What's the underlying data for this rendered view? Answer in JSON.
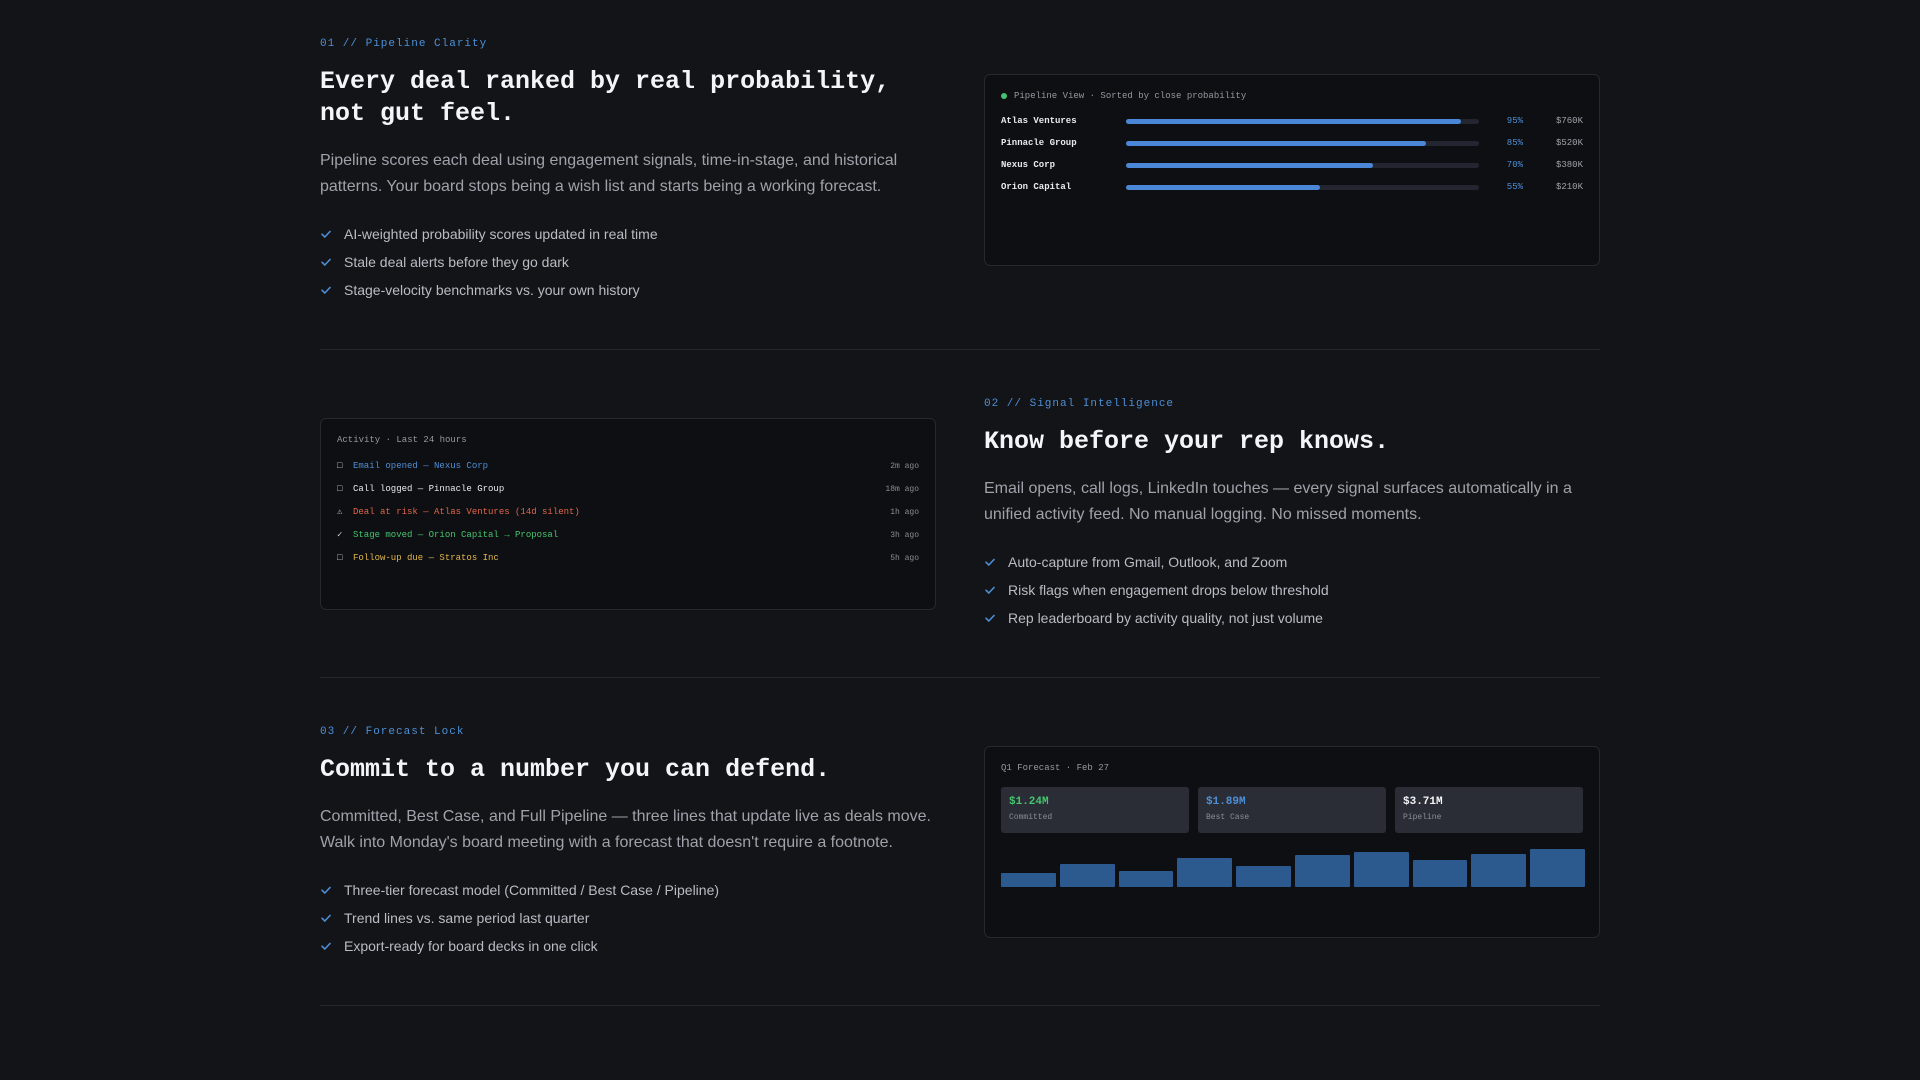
{
  "sections": [
    {
      "eyebrow": "01 // Pipeline Clarity",
      "heading": "Every deal ranked by real probability, not gut feel.",
      "description": "Pipeline scores each deal using engagement signals, time-in-stage, and historical patterns. Your board stops being a wish list and starts being a working forecast.",
      "features": [
        "AI-weighted probability scores updated in real time",
        "Stale deal alerts before they go dark",
        "Stage-velocity benchmarks vs. your own history"
      ]
    },
    {
      "eyebrow": "02 // Signal Intelligence",
      "heading": "Know before your rep knows.",
      "description": "Email opens, call logs, LinkedIn touches — every signal surfaces automatically in a unified activity feed. No manual logging. No missed moments.",
      "features": [
        "Auto-capture from Gmail, Outlook, and Zoom",
        "Risk flags when engagement drops below threshold",
        "Rep leaderboard by activity quality, not just volume"
      ]
    },
    {
      "eyebrow": "03 // Forecast Lock",
      "heading": "Commit to a number you can defend.",
      "description": "Committed, Best Case, and Full Pipeline — three lines that update live as deals move. Walk into Monday's board meeting with a forecast that doesn't require a footnote.",
      "features": [
        "Three-tier forecast model (Committed / Best Case / Pipeline)",
        "Trend lines vs. same period last quarter",
        "Export-ready for board decks in one click"
      ]
    }
  ],
  "pipeline_card": {
    "title": "Pipeline View · Sorted by close probability",
    "status_color": "#45c46f",
    "deals": [
      {
        "name": "Atlas Ventures",
        "probability": 95,
        "pct_label": "95%",
        "amount": "$760K"
      },
      {
        "name": "Pinnacle Group",
        "probability": 85,
        "pct_label": "85%",
        "amount": "$520K"
      },
      {
        "name": "Nexus Corp",
        "probability": 70,
        "pct_label": "70%",
        "amount": "$380K"
      },
      {
        "name": "Orion Capital",
        "probability": 55,
        "pct_label": "55%",
        "amount": "$210K"
      }
    ]
  },
  "activity_card": {
    "title": "Activity · Last 24 hours",
    "items": [
      {
        "icon": "envelope-icon",
        "glyph": "□",
        "text": "Email opened — Nexus Corp",
        "time": "2m ago",
        "color": "#4d8fd6"
      },
      {
        "icon": "phone-icon",
        "glyph": "□",
        "text": "Call logged — Pinnacle Group",
        "time": "18m ago",
        "color": "#e9eaee"
      },
      {
        "icon": "warning-icon",
        "glyph": "⚠",
        "text": "Deal at risk — Atlas Ventures (14d silent)",
        "time": "1h ago",
        "color": "#e0654a"
      },
      {
        "icon": "check-icon",
        "glyph": "✓",
        "text": "Stage moved — Orion Capital → Proposal",
        "time": "3h ago",
        "color": "#45c46f"
      },
      {
        "icon": "calendar-icon",
        "glyph": "□",
        "text": "Follow-up due — Stratos Inc",
        "time": "5h ago",
        "color": "#e0b54a"
      }
    ]
  },
  "forecast_card": {
    "title": "Q1 Forecast · Feb 27",
    "tiers": [
      {
        "value": "$1.24M",
        "label": "Committed",
        "color": "#45c46f"
      },
      {
        "value": "$1.89M",
        "label": "Best Case",
        "color": "#4d8fd6"
      },
      {
        "value": "$3.71M",
        "label": "Pipeline",
        "color": "#f4f5f7"
      }
    ],
    "trend": [
      0.38,
      0.6,
      0.43,
      0.76,
      0.54,
      0.83,
      0.93,
      0.7,
      0.87,
      1.0
    ]
  },
  "colors": {
    "accent": "#4d8fd6",
    "background": "#131417",
    "card": "#0e0f12",
    "bar": "#2c5a8f"
  }
}
